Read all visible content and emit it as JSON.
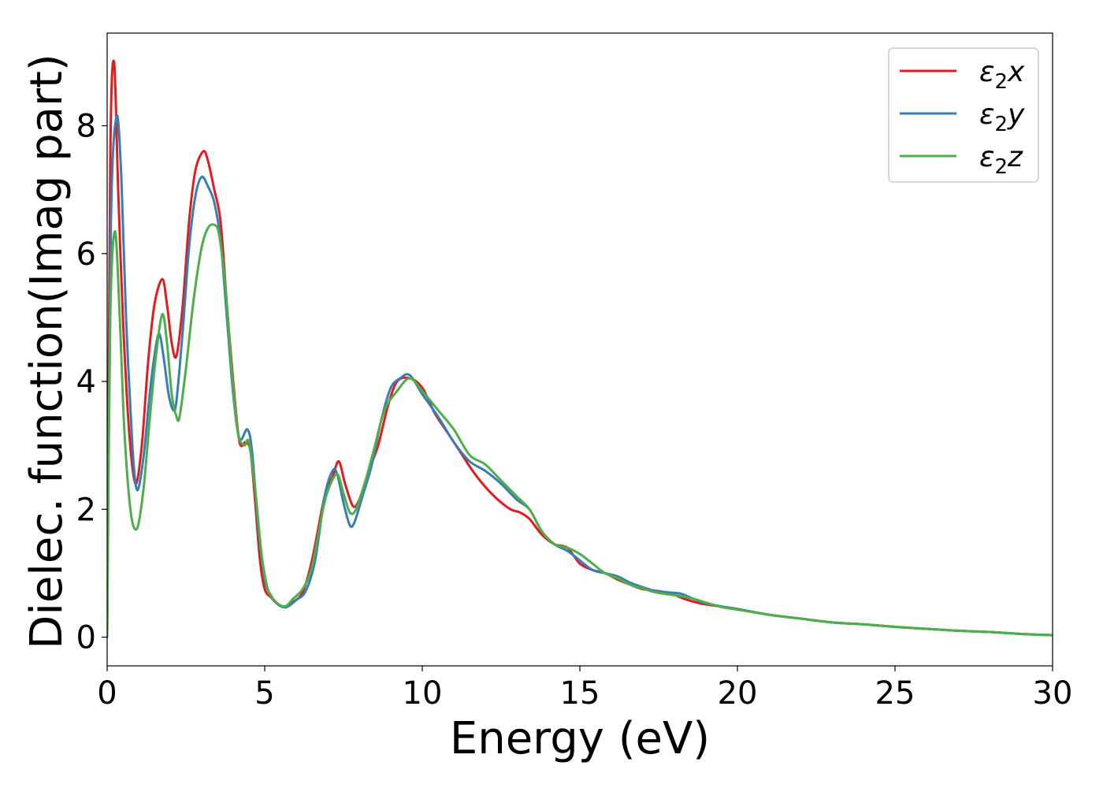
{
  "chart_data": {
    "type": "line",
    "title": "",
    "xlabel": "Energy (eV)",
    "ylabel": "Dielec. function(Imag part)",
    "xlim": [
      0,
      30
    ],
    "ylim": [
      -0.45,
      9.45
    ],
    "xticks": [
      0,
      5,
      10,
      15,
      20,
      25,
      30
    ],
    "yticks": [
      0,
      2,
      4,
      6,
      8
    ],
    "xtick_labels": [
      "0",
      "5",
      "10",
      "15",
      "20",
      "25",
      "30"
    ],
    "ytick_labels": [
      "0",
      "2",
      "4",
      "6",
      "8"
    ],
    "grid": false,
    "legend_position": "top-right",
    "series": [
      {
        "name": "ε₂x",
        "legend_main": "ε",
        "legend_sub": "2",
        "legend_suffix": "x",
        "color": "#e41a1c",
        "x": [
          0,
          0.1,
          0.22,
          0.35,
          0.5,
          0.7,
          0.9,
          1.1,
          1.3,
          1.5,
          1.75,
          1.9,
          2.05,
          2.2,
          2.4,
          2.6,
          2.8,
          3.05,
          3.2,
          3.4,
          3.6,
          3.8,
          4.0,
          4.2,
          4.4,
          4.55,
          4.7,
          4.85,
          5.0,
          5.2,
          5.4,
          5.65,
          5.9,
          6.2,
          6.5,
          6.9,
          7.15,
          7.35,
          7.55,
          7.8,
          8.0,
          8.3,
          8.6,
          8.9,
          9.2,
          9.6,
          10.0,
          10.4,
          10.8,
          11.2,
          11.6,
          12.0,
          12.4,
          12.8,
          13.1,
          13.4,
          13.8,
          14.2,
          14.6,
          15.0,
          15.4,
          15.8,
          16.2,
          16.6,
          17.0,
          17.5,
          17.9,
          18.3,
          18.8,
          19.3,
          20.0,
          21.0,
          22.0,
          23.0,
          24.0,
          25.0,
          26.0,
          27.0,
          28.0,
          29.0,
          30.0
        ],
        "y": [
          0.0,
          7.5,
          9.0,
          7.0,
          5.0,
          3.2,
          2.4,
          3.0,
          4.3,
          5.2,
          5.6,
          5.2,
          4.6,
          4.4,
          5.2,
          6.5,
          7.3,
          7.6,
          7.45,
          7.0,
          6.5,
          5.2,
          4.0,
          3.05,
          3.05,
          2.9,
          2.1,
          1.2,
          0.75,
          0.62,
          0.52,
          0.47,
          0.55,
          0.7,
          1.2,
          2.2,
          2.5,
          2.75,
          2.4,
          2.05,
          2.15,
          2.6,
          3.0,
          3.6,
          4.0,
          4.05,
          3.9,
          3.5,
          3.2,
          2.9,
          2.6,
          2.35,
          2.15,
          2.0,
          1.95,
          1.85,
          1.6,
          1.45,
          1.4,
          1.15,
          1.05,
          1.0,
          0.9,
          0.82,
          0.75,
          0.72,
          0.68,
          0.6,
          0.53,
          0.49,
          0.44,
          0.35,
          0.29,
          0.23,
          0.2,
          0.16,
          0.13,
          0.1,
          0.08,
          0.05,
          0.03
        ]
      },
      {
        "name": "ε₂y",
        "legend_main": "ε",
        "legend_sub": "2",
        "legend_suffix": "y",
        "color": "#377eb8",
        "x": [
          0,
          0.12,
          0.3,
          0.45,
          0.6,
          0.8,
          0.95,
          1.15,
          1.35,
          1.5,
          1.65,
          1.8,
          1.95,
          2.1,
          2.2,
          2.4,
          2.6,
          2.8,
          3.0,
          3.2,
          3.4,
          3.6,
          3.8,
          4.0,
          4.2,
          4.45,
          4.6,
          4.8,
          5.0,
          5.2,
          5.45,
          5.7,
          6.0,
          6.3,
          6.6,
          6.9,
          7.15,
          7.3,
          7.5,
          7.7,
          7.85,
          8.1,
          8.4,
          8.7,
          9.0,
          9.3,
          9.6,
          10.0,
          10.5,
          11.0,
          11.5,
          12.0,
          12.5,
          13.0,
          13.4,
          13.8,
          14.2,
          14.6,
          15.0,
          15.4,
          15.8,
          16.2,
          16.6,
          17.0,
          17.4,
          17.8,
          18.2,
          18.6,
          19.0,
          19.5,
          20.0,
          21.0,
          22.0,
          23.0,
          24.0,
          25.0,
          26.0,
          27.0,
          28.0,
          29.0,
          30.0
        ],
        "y": [
          0.0,
          6.5,
          8.15,
          7.2,
          5.0,
          3.0,
          2.3,
          2.8,
          3.8,
          4.4,
          4.75,
          4.35,
          3.8,
          3.55,
          3.7,
          4.8,
          6.1,
          6.9,
          7.2,
          7.05,
          6.8,
          6.2,
          5.0,
          3.8,
          3.1,
          3.25,
          2.9,
          1.7,
          0.9,
          0.65,
          0.5,
          0.47,
          0.58,
          0.72,
          1.2,
          2.2,
          2.6,
          2.55,
          2.1,
          1.75,
          1.8,
          2.2,
          2.7,
          3.4,
          3.9,
          4.05,
          4.1,
          3.8,
          3.45,
          3.05,
          2.75,
          2.6,
          2.4,
          2.15,
          2.0,
          1.65,
          1.45,
          1.35,
          1.2,
          1.05,
          1.0,
          0.95,
          0.85,
          0.78,
          0.72,
          0.7,
          0.68,
          0.6,
          0.53,
          0.48,
          0.44,
          0.35,
          0.29,
          0.23,
          0.2,
          0.16,
          0.13,
          0.1,
          0.08,
          0.05,
          0.03
        ]
      },
      {
        "name": "ε₂z",
        "legend_main": "ε",
        "legend_sub": "2",
        "legend_suffix": "z",
        "color": "#4daf4a",
        "x": [
          0,
          0.1,
          0.25,
          0.4,
          0.55,
          0.75,
          0.95,
          1.15,
          1.35,
          1.55,
          1.75,
          1.9,
          2.05,
          2.2,
          2.3,
          2.5,
          2.75,
          3.0,
          3.2,
          3.4,
          3.55,
          3.75,
          3.95,
          4.15,
          4.35,
          4.5,
          4.7,
          4.9,
          5.1,
          5.35,
          5.65,
          5.9,
          6.2,
          6.5,
          6.85,
          7.05,
          7.3,
          7.5,
          7.7,
          7.9,
          8.2,
          8.5,
          8.8,
          9.2,
          9.6,
          10.0,
          10.5,
          11.0,
          11.5,
          12.0,
          12.5,
          13.0,
          13.4,
          13.8,
          14.2,
          14.6,
          15.0,
          15.4,
          15.8,
          16.2,
          16.6,
          17.0,
          17.4,
          17.8,
          18.2,
          18.6,
          19.0,
          19.5,
          20.0,
          21.0,
          22.0,
          23.0,
          24.0,
          25.0,
          26.0,
          27.0,
          28.0,
          29.0,
          30.0
        ],
        "y": [
          0.0,
          5.0,
          6.35,
          5.0,
          3.2,
          1.95,
          1.7,
          2.3,
          3.4,
          4.4,
          5.05,
          4.6,
          3.8,
          3.45,
          3.45,
          4.2,
          5.3,
          6.1,
          6.4,
          6.45,
          6.3,
          5.5,
          4.2,
          3.2,
          3.0,
          3.05,
          2.3,
          1.3,
          0.75,
          0.55,
          0.48,
          0.6,
          0.75,
          1.1,
          2.0,
          2.35,
          2.55,
          2.25,
          1.95,
          2.0,
          2.45,
          3.0,
          3.55,
          3.85,
          4.05,
          3.85,
          3.55,
          3.25,
          2.85,
          2.7,
          2.45,
          2.2,
          2.0,
          1.65,
          1.45,
          1.4,
          1.3,
          1.15,
          1.0,
          0.92,
          0.82,
          0.76,
          0.7,
          0.67,
          0.64,
          0.6,
          0.54,
          0.47,
          0.43,
          0.35,
          0.29,
          0.23,
          0.2,
          0.16,
          0.13,
          0.1,
          0.08,
          0.05,
          0.03
        ]
      }
    ]
  }
}
